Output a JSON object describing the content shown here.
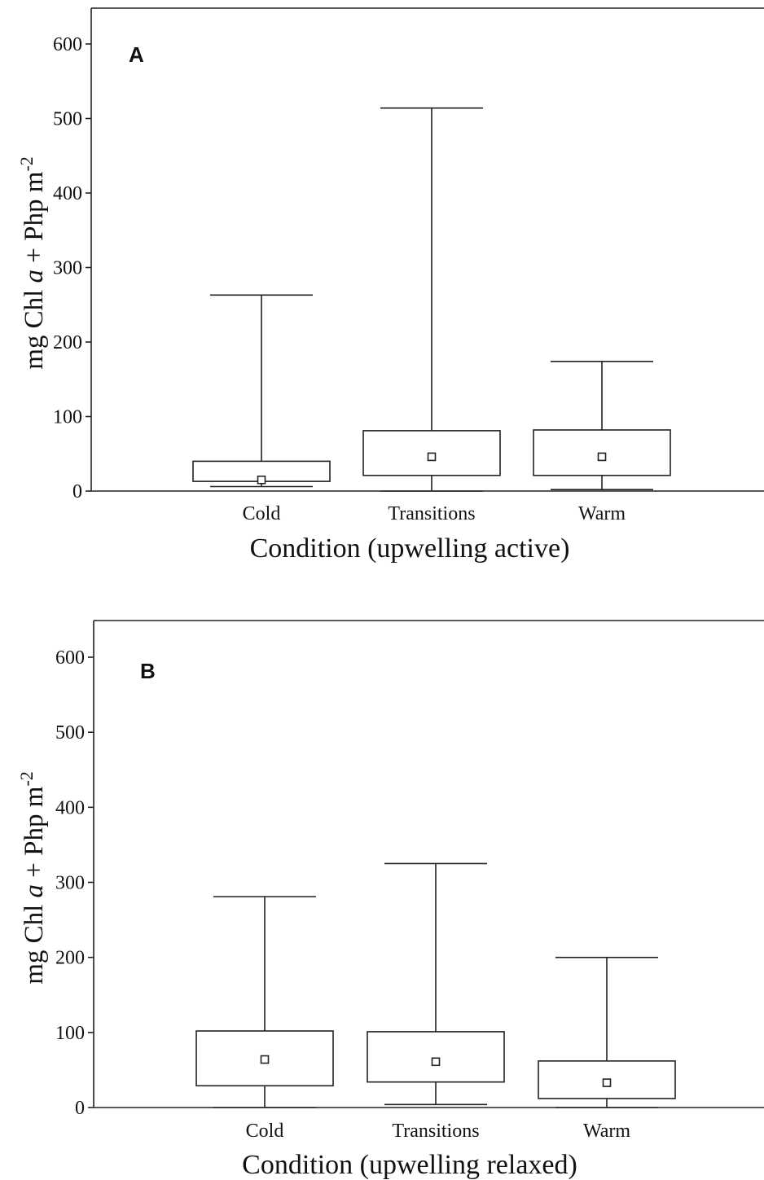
{
  "chart_data": [
    {
      "type": "box",
      "panel_label": "A",
      "xlabel": "Condition (upwelling active)",
      "ylabel": "mg Chl a + Php m-2",
      "ylabel_parts": {
        "prefix": "mg Chl ",
        "italic": "a",
        "middle": " + Php m",
        "superscript": "-2"
      },
      "ylim": [
        0,
        650
      ],
      "yticks": [
        0,
        100,
        200,
        300,
        400,
        500,
        600
      ],
      "categories": [
        "Cold",
        "Transitions",
        "Warm"
      ],
      "boxes": [
        {
          "category": "Cold",
          "whisker_low": 6,
          "q1": 13,
          "mean": 15,
          "q3": 40,
          "whisker_high": 263
        },
        {
          "category": "Transitions",
          "whisker_low": 0,
          "q1": 21,
          "mean": 46,
          "q3": 81,
          "whisker_high": 514
        },
        {
          "category": "Warm",
          "whisker_low": 2,
          "q1": 21,
          "mean": 46,
          "q3": 82,
          "whisker_high": 174
        }
      ]
    },
    {
      "type": "box",
      "panel_label": "B",
      "xlabel": "Condition (upwelling relaxed)",
      "ylabel": "mg Chl a + Php m-2",
      "ylabel_parts": {
        "prefix": "mg Chl ",
        "italic": "a",
        "middle": " + Php m",
        "superscript": "-2"
      },
      "ylim": [
        0,
        650
      ],
      "yticks": [
        0,
        100,
        200,
        300,
        400,
        500,
        600
      ],
      "categories": [
        "Cold",
        "Transitions",
        "Warm"
      ],
      "boxes": [
        {
          "category": "Cold",
          "whisker_low": 0,
          "q1": 29,
          "mean": 64,
          "q3": 102,
          "whisker_high": 281
        },
        {
          "category": "Transitions",
          "whisker_low": 4,
          "q1": 34,
          "mean": 61,
          "q3": 101,
          "whisker_high": 325
        },
        {
          "category": "Warm",
          "whisker_low": 0,
          "q1": 12,
          "mean": 33,
          "q3": 62,
          "whisker_high": 200
        }
      ]
    }
  ]
}
